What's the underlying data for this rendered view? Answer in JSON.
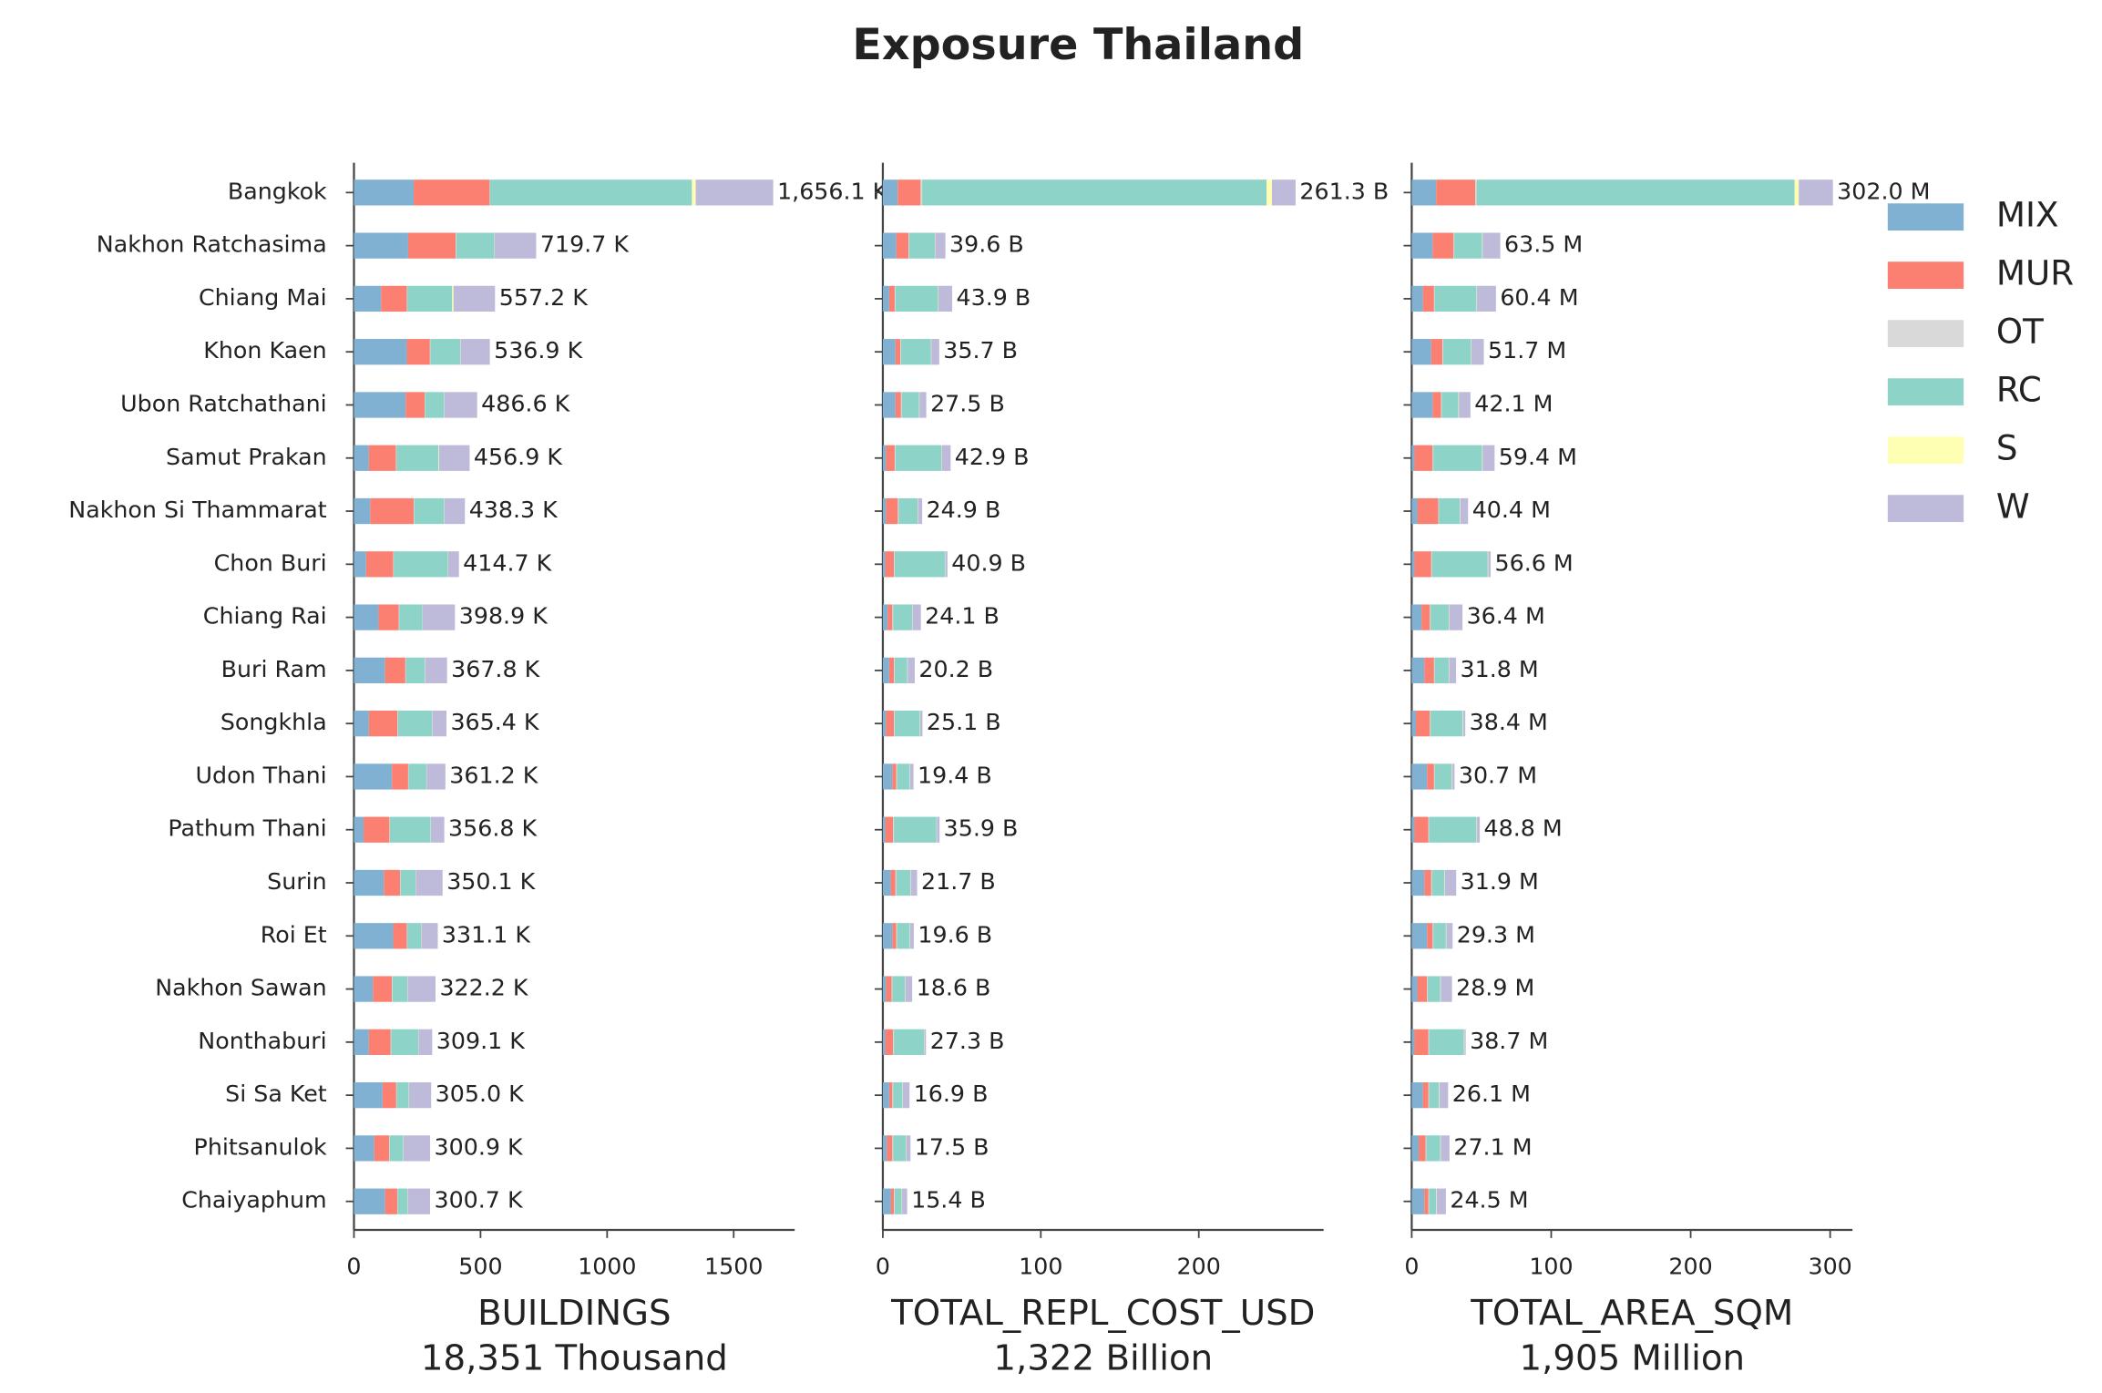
{
  "chart_data": {
    "type": "bar",
    "orientation": "horizontal",
    "stacked": true,
    "title": "Exposure Thailand",
    "categories": [
      "Bangkok",
      "Nakhon Ratchasima",
      "Chiang Mai",
      "Khon Kaen",
      "Ubon Ratchathani",
      "Samut Prakan",
      "Nakhon Si Thammarat",
      "Chon Buri",
      "Chiang Rai",
      "Buri Ram",
      "Songkhla",
      "Udon Thani",
      "Pathum Thani",
      "Surin",
      "Roi Et",
      "Nakhon Sawan",
      "Nonthaburi",
      "Si Sa Ket",
      "Phitsanulok",
      "Chaiyaphum"
    ],
    "series": [
      {
        "name": "MIX",
        "color": "#80b1d3"
      },
      {
        "name": "MUR",
        "color": "#fb8072"
      },
      {
        "name": "OT",
        "color": "#d9d9d9"
      },
      {
        "name": "RC",
        "color": "#8dd3c7"
      },
      {
        "name": "S",
        "color": "#ffffb3"
      },
      {
        "name": "W",
        "color": "#bebada"
      }
    ],
    "legend": "upper right",
    "panels": [
      {
        "xlabel": "BUILDINGS",
        "subtitle": "18,351 Thousand",
        "xlim": [
          0,
          1741
        ],
        "xticks": [
          0,
          500,
          1000,
          1500
        ],
        "values": [
          [
            236,
            214,
            107,
            209,
            204,
            59,
            64,
            48,
            97,
            123,
            59,
            150,
            38,
            118,
            155,
            75,
            59,
            113,
            80,
            123
          ],
          [
            300,
            188,
            102,
            91,
            75,
            107,
            172,
            107,
            80,
            80,
            113,
            64,
            102,
            64,
            54,
            75,
            86,
            54,
            59,
            48
          ],
          [
            1,
            2,
            2,
            2,
            2,
            2,
            2,
            2,
            2,
            2,
            2,
            2,
            2,
            2,
            2,
            2,
            2,
            2,
            2,
            2
          ],
          [
            798,
            150,
            177,
            118,
            75,
            166,
            118,
            214,
            91,
            75,
            134,
            70,
            161,
            59,
            54,
            59,
            107,
            48,
            54,
            38
          ],
          [
            15,
            1,
            5,
            1,
            1,
            2,
            1,
            1,
            1,
            1,
            1,
            1,
            1,
            1,
            1,
            1,
            1,
            1,
            1,
            1
          ],
          [
            306.1,
            164.7,
            164.2,
            115.9,
            129.6,
            120.9,
            81.3,
            42.7,
            127.9,
            86.8,
            56.4,
            74.2,
            52.8,
            106.1,
            65.1,
            110.2,
            54.1,
            87,
            104.9,
            88.7
          ]
        ],
        "totals": [
          1656.1,
          719.7,
          557.2,
          536.9,
          486.6,
          456.9,
          438.3,
          414.7,
          398.9,
          367.8,
          365.4,
          361.2,
          356.8,
          350.1,
          331.1,
          322.2,
          309.1,
          305.0,
          300.9,
          300.7
        ],
        "total_labels": [
          "1,656.1 K",
          "719.7 K",
          "557.2 K",
          "536.9 K",
          "486.6 K",
          "456.9 K",
          "438.3 K",
          "414.7 K",
          "398.9 K",
          "367.8 K",
          "365.4 K",
          "361.2 K",
          "356.8 K",
          "350.1 K",
          "331.1 K",
          "322.2 K",
          "309.1 K",
          "305.0 K",
          "300.9 K",
          "300.7 K"
        ]
      },
      {
        "xlabel": "TOTAL_REPL_COST_USD",
        "subtitle": "1,322 Billion",
        "xlim": [
          0,
          279
        ],
        "xticks": [
          0,
          100,
          200
        ],
        "values": [
          [
            9.4,
            8.5,
            4,
            8,
            8,
            2,
            2,
            1.5,
            3,
            4,
            2,
            6,
            1.5,
            5,
            6,
            2,
            1.5,
            4,
            2.5,
            5
          ],
          [
            14.5,
            7.7,
            3.5,
            3,
            3.5,
            5.5,
            7.5,
            5.5,
            3,
            3,
            5,
            2.5,
            5,
            3,
            2.5,
            3.5,
            5,
            2,
            3.5,
            2
          ],
          [
            1,
            0.5,
            0.5,
            0.5,
            0.5,
            0.5,
            0.5,
            0.5,
            0.5,
            0.5,
            0.5,
            0.5,
            0.5,
            0.5,
            0.5,
            0.5,
            0.5,
            0.5,
            0.5,
            0.5
          ],
          [
            218,
            16.2,
            27,
            19,
            11,
            29,
            12,
            32,
            12,
            8,
            16,
            8,
            27,
            9,
            8,
            8,
            19,
            6,
            8,
            4.5
          ],
          [
            3.4,
            0.2,
            0.2,
            0.2,
            0.2,
            0.2,
            0.2,
            0.2,
            0.2,
            0.2,
            0.2,
            0.2,
            0.2,
            0.2,
            0.2,
            0.2,
            0.2,
            0.2,
            0.2,
            0.2
          ],
          [
            15.0,
            6.5,
            8.7,
            5.0,
            4.3,
            5.7,
            2.7,
            1.2,
            5.4,
            4.5,
            1.4,
            2.2,
            1.7,
            4.0,
            2.4,
            4.4,
            1.1,
            4.2,
            2.8,
            3.2
          ]
        ],
        "totals": [
          261.3,
          39.6,
          43.9,
          35.7,
          27.5,
          42.9,
          24.9,
          40.9,
          24.1,
          20.2,
          25.1,
          19.4,
          35.9,
          21.7,
          19.6,
          18.6,
          27.3,
          16.9,
          17.5,
          15.4
        ],
        "total_labels": [
          "261.3 B",
          "39.6 B",
          "43.9 B",
          "35.7 B",
          "27.5 B",
          "42.9 B",
          "24.9 B",
          "40.9 B",
          "24.1 B",
          "20.2 B",
          "25.1 B",
          "19.4 B",
          "35.9 B",
          "21.7 B",
          "19.6 B",
          "18.6 B",
          "27.3 B",
          "16.9 B",
          "17.5 B",
          "15.4 B"
        ]
      },
      {
        "xlabel": "TOTAL_AREA_SQM",
        "subtitle": "1,905 Million",
        "xlim": [
          0,
          316
        ],
        "xticks": [
          0,
          100,
          200,
          300
        ],
        "values": [
          [
            17.5,
            15,
            8,
            14,
            15,
            2,
            4,
            2,
            7,
            9,
            3,
            11,
            2,
            9,
            11,
            4,
            2,
            8,
            5,
            9
          ],
          [
            28,
            15,
            8,
            8,
            6,
            13,
            15,
            12,
            6,
            7,
            10,
            5,
            10,
            5,
            4,
            7,
            10,
            4,
            5,
            3
          ],
          [
            1,
            0.5,
            0.5,
            0.5,
            0.5,
            0.5,
            0.5,
            0.5,
            0.5,
            0.5,
            0.5,
            0.5,
            0.5,
            0.5,
            0.5,
            0.5,
            0.5,
            0.5,
            0.5,
            0.5
          ],
          [
            228,
            20,
            30,
            20,
            12,
            35,
            15,
            40,
            13,
            10,
            23,
            12,
            34,
            9,
            9,
            9,
            25,
            7,
            10,
            5
          ],
          [
            3,
            0.3,
            0.3,
            0.3,
            0.3,
            0.3,
            0.3,
            0.3,
            0.3,
            0.3,
            0.3,
            0.3,
            0.3,
            0.3,
            0.3,
            0.3,
            0.3,
            0.3,
            0.3,
            0.3
          ],
          [
            24.5,
            12.7,
            13.6,
            8.9,
            8.3,
            8.6,
            5.6,
            1.8,
            9.6,
            5.0,
            1.6,
            1.9,
            2.0,
            8.1,
            4.5,
            8.1,
            0.9,
            6.3,
            6.3,
            6.7
          ]
        ],
        "totals": [
          302.0,
          63.5,
          60.4,
          51.7,
          42.1,
          59.4,
          40.4,
          56.6,
          36.4,
          31.8,
          38.4,
          30.7,
          48.8,
          31.9,
          29.3,
          28.9,
          38.7,
          26.1,
          27.1,
          24.5
        ],
        "total_labels": [
          "302.0 M",
          "63.5 M",
          "60.4 M",
          "51.7 M",
          "42.1 M",
          "59.4 M",
          "40.4 M",
          "56.6 M",
          "36.4 M",
          "31.8 M",
          "38.4 M",
          "30.7 M",
          "48.8 M",
          "31.9 M",
          "29.3 M",
          "28.9 M",
          "38.7 M",
          "26.1 M",
          "27.1 M",
          "24.5 M"
        ]
      }
    ]
  }
}
